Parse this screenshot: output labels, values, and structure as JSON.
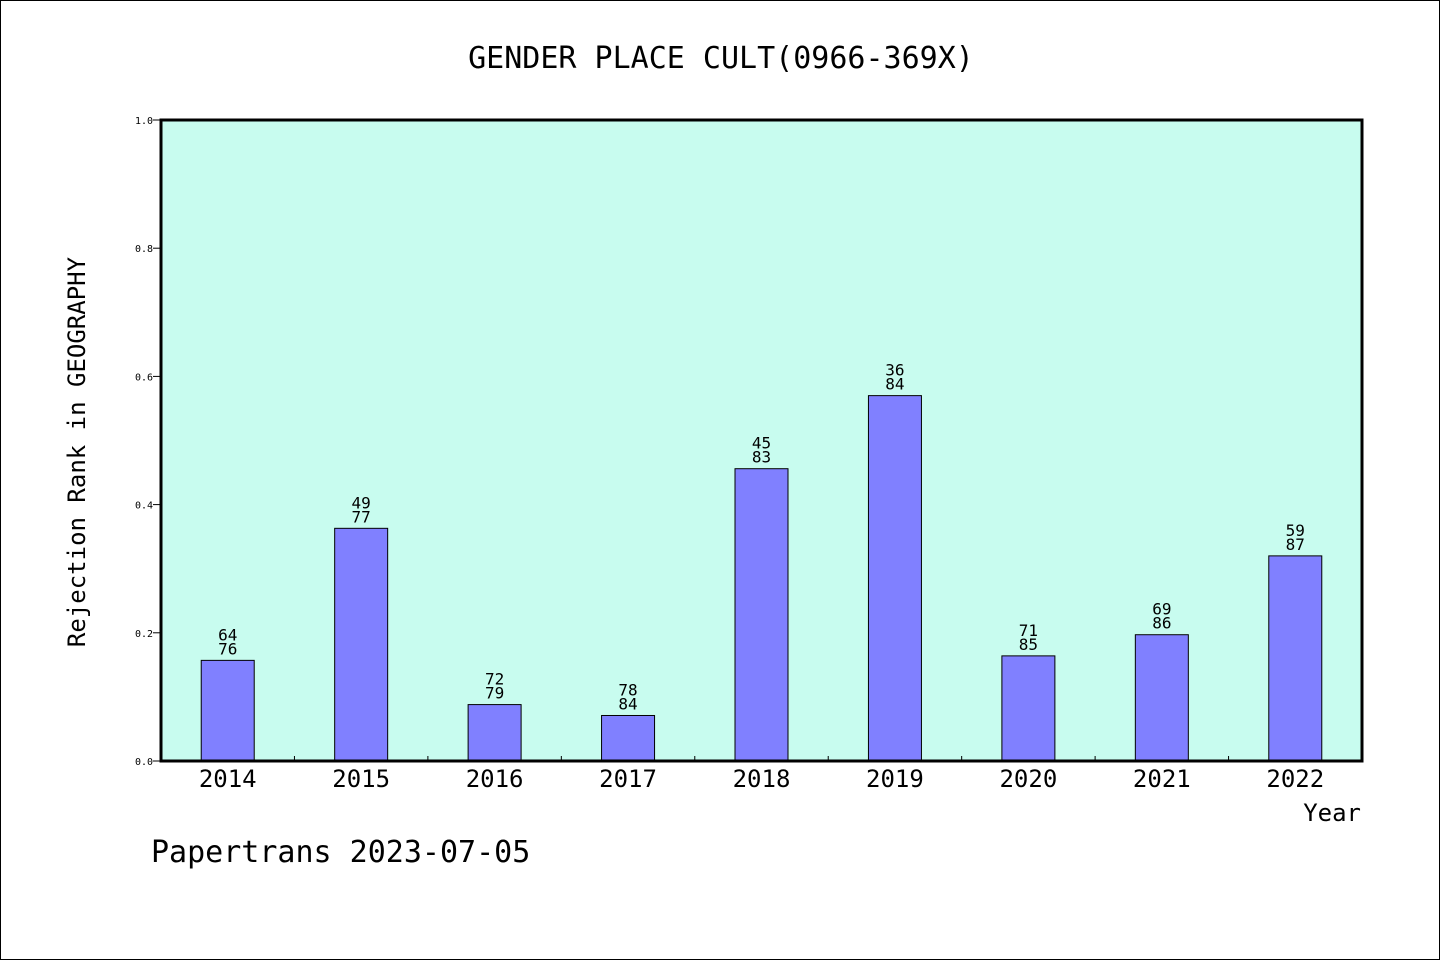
{
  "chart_data": {
    "type": "bar",
    "title": "GENDER PLACE CULT(0966-369X)",
    "xlabel": "Year",
    "ylabel": "Rejection Rank in GEOGRAPHY",
    "ylim": [
      0,
      1.0
    ],
    "yticks": [
      "0.0",
      "0.2",
      "0.4",
      "0.6",
      "0.8",
      "1.0"
    ],
    "categories": [
      "2014",
      "2015",
      "2016",
      "2017",
      "2018",
      "2019",
      "2020",
      "2021",
      "2022"
    ],
    "values": [
      0.157,
      0.363,
      0.088,
      0.071,
      0.456,
      0.57,
      0.164,
      0.197,
      0.32
    ],
    "labels_top": [
      "64",
      "49",
      "72",
      "78",
      "45",
      "36",
      "71",
      "69",
      "59"
    ],
    "labels_bottom": [
      "76",
      "77",
      "79",
      "84",
      "83",
      "84",
      "85",
      "86",
      "87"
    ],
    "grid": false,
    "colors": {
      "plot_background": "#c8fcef",
      "bar_fill": "#8080ff",
      "bar_stroke": "#000000"
    }
  },
  "footer": "Papertrans 2023-07-05"
}
